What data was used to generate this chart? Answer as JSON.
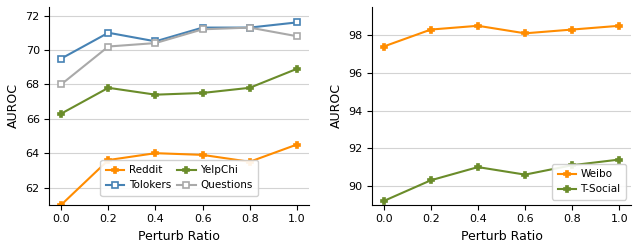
{
  "x": [
    0.0,
    0.2,
    0.4,
    0.6,
    0.8,
    1.0
  ],
  "left": {
    "Reddit": [
      61.0,
      63.6,
      64.0,
      63.9,
      63.5,
      64.5
    ],
    "YelpChi": [
      66.3,
      67.8,
      67.4,
      67.5,
      67.8,
      68.9
    ],
    "Tolokers": [
      69.5,
      71.0,
      70.5,
      71.3,
      71.3,
      71.6
    ],
    "Questions": [
      68.0,
      70.2,
      70.4,
      71.2,
      71.3,
      70.8
    ],
    "ylim": [
      61,
      72.5
    ],
    "yticks": [
      62,
      64,
      66,
      68,
      70,
      72
    ],
    "colors": {
      "Reddit": "#ff8c00",
      "YelpChi": "#6a8c2a",
      "Tolokers": "#4682b4",
      "Questions": "#a9a9a9"
    },
    "markers": {
      "Reddit": "P",
      "YelpChi": "P",
      "Tolokers": "s",
      "Questions": "s"
    }
  },
  "right": {
    "Weibo": [
      97.4,
      98.3,
      98.5,
      98.1,
      98.3,
      98.5
    ],
    "T-Social": [
      89.2,
      90.3,
      91.0,
      90.6,
      91.1,
      91.4
    ],
    "ylim": [
      89,
      99.5
    ],
    "yticks": [
      90,
      92,
      94,
      96,
      98
    ],
    "colors": {
      "Weibo": "#ff8c00",
      "T-Social": "#6a8c2a"
    },
    "markers": {
      "Weibo": "P",
      "T-Social": "P"
    }
  },
  "xlabel": "Perturb Ratio",
  "ylabel": "AUROC"
}
